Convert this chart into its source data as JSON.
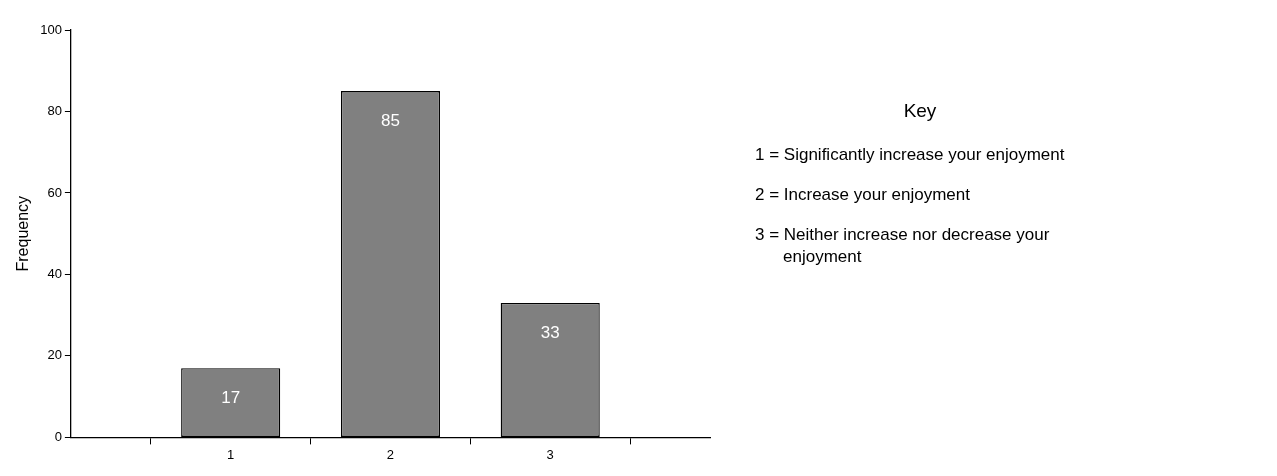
{
  "chart_data": {
    "type": "bar",
    "ylabel": "Frequency",
    "x": [
      1,
      2,
      3
    ],
    "values": [
      17,
      85,
      33
    ],
    "color": "#808080",
    "data_labels": true,
    "xlim": [
      0,
      4
    ],
    "xticks": [
      1,
      2,
      3
    ],
    "ylim": [
      0,
      100
    ],
    "yticks": [
      0,
      20,
      40,
      60,
      80,
      100
    ],
    "annotations": [
      "Key",
      "1 = Significantly increase your enjoyment",
      "2 = Increase your enjoyment",
      "3 = Neither increase nor decrease your enjoyment"
    ]
  }
}
